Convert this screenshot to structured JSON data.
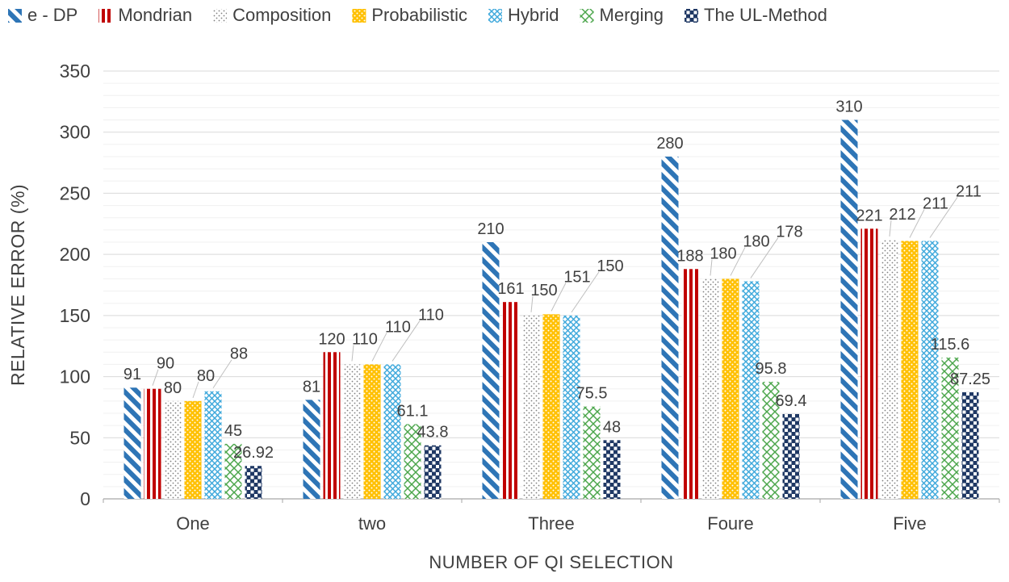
{
  "chart_data": {
    "type": "bar",
    "title": "",
    "xlabel": "NUMBER OF QI SELECTION",
    "ylabel": "RELATIVE ERROR (%)",
    "categories": [
      "One",
      "two",
      "Three",
      "Foure",
      "Five"
    ],
    "series": [
      {
        "name": "e - DP",
        "pattern": "diagonal-stripes",
        "color": "#2E75B6",
        "values": [
          91,
          81,
          210,
          280,
          310
        ]
      },
      {
        "name": "Mondrian",
        "pattern": "vertical-stripes",
        "color": "#C00000",
        "values": [
          90,
          120,
          161,
          188,
          221
        ]
      },
      {
        "name": "Composition",
        "pattern": "dots",
        "color": "#7F7F7F",
        "values": [
          80,
          110,
          150,
          180,
          212
        ]
      },
      {
        "name": "Probabilistic",
        "pattern": "dotted-grid",
        "color": "#FFC000",
        "values": [
          80,
          110,
          151,
          180,
          211
        ]
      },
      {
        "name": "Hybrid",
        "pattern": "diagonal-crosshatch",
        "color": "#3FA9DC",
        "values": [
          88,
          110,
          150,
          178,
          211
        ]
      },
      {
        "name": "Merging",
        "pattern": "diamond-lattice",
        "color": "#4CA64C",
        "values": [
          45,
          61.1,
          75.5,
          95.8,
          115.6
        ]
      },
      {
        "name": "The UL-Method",
        "pattern": "checkerboard",
        "color": "#1F3864",
        "values": [
          26.92,
          43.8,
          48,
          69.4,
          87.25
        ]
      }
    ],
    "ylim": [
      0,
      350
    ],
    "yticks": [
      0,
      50,
      100,
      150,
      200,
      250,
      300,
      350
    ],
    "ytick_step": 50,
    "minor_step": 10,
    "grid": true,
    "data_labels": true,
    "legend_position": "top",
    "text_color": "#404040",
    "gridline_color": "#D9D9D9",
    "minor_gridline_color": "#F0F0F0",
    "axis_line_color": "#A6A6A6",
    "leader_line_color": "#BFBFBF"
  }
}
